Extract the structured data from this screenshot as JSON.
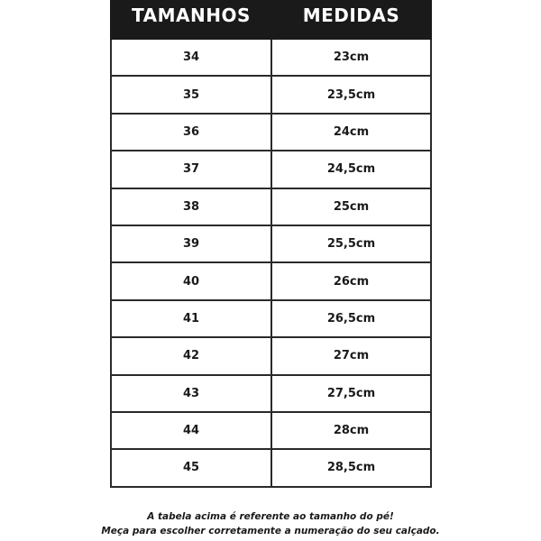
{
  "table": {
    "headers": [
      "TAMANHOS",
      "MEDIDAS"
    ],
    "rows": [
      [
        "34",
        "23cm"
      ],
      [
        "35",
        "23,5cm"
      ],
      [
        "36",
        "24cm"
      ],
      [
        "37",
        "24,5cm"
      ],
      [
        "38",
        "25cm"
      ],
      [
        "39",
        "25,5cm"
      ],
      [
        "40",
        "26cm"
      ],
      [
        "41",
        "26,5cm"
      ],
      [
        "42",
        "27cm"
      ],
      [
        "43",
        "27,5cm"
      ],
      [
        "44",
        "28cm"
      ],
      [
        "45",
        "28,5cm"
      ]
    ]
  },
  "footer": {
    "line1": "A tabela acima é referente ao tamanho do pé!",
    "line2": "Meça para escolher corretamente a numeração do seu calçado."
  }
}
